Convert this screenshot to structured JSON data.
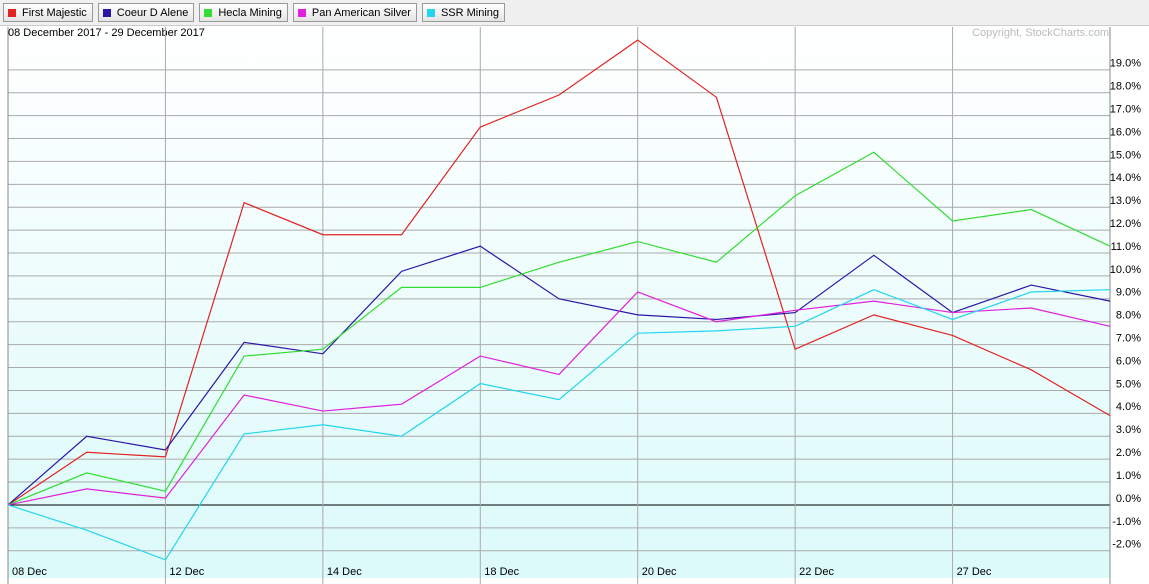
{
  "chart_data": {
    "type": "line",
    "subtitle": "08 December 2017 - 29 December 2017",
    "credit": "Copyright, StockCharts.com",
    "categories": [
      "08 Dec",
      null,
      "12 Dec",
      null,
      "14 Dec",
      null,
      "18 Dec",
      null,
      "20 Dec",
      null,
      "22 Dec",
      null,
      "27 Dec",
      null,
      null
    ],
    "series": [
      {
        "name": "First Majestic",
        "color": "#e32222",
        "values": [
          0,
          2.3,
          2.1,
          13.2,
          11.8,
          11.8,
          16.5,
          17.9,
          20.3,
          17.8,
          6.8,
          8.3,
          7.4,
          5.9,
          3.9
        ]
      },
      {
        "name": "Coeur D Alene",
        "color": "#2a14a8",
        "values": [
          0,
          3.0,
          2.4,
          7.1,
          6.6,
          10.2,
          11.3,
          9.0,
          8.3,
          8.1,
          8.4,
          10.9,
          8.4,
          9.6,
          8.9
        ]
      },
      {
        "name": "Hecla Mining",
        "color": "#33dd33",
        "values": [
          0,
          1.4,
          0.6,
          6.5,
          6.8,
          9.5,
          9.5,
          10.6,
          11.5,
          10.6,
          13.5,
          15.4,
          12.4,
          12.9,
          11.3
        ]
      },
      {
        "name": "Pan American Silver",
        "color": "#e020dc",
        "values": [
          0,
          0.7,
          0.3,
          4.8,
          4.1,
          4.4,
          6.5,
          5.7,
          9.3,
          8.0,
          8.5,
          8.9,
          8.4,
          8.6,
          7.8
        ]
      },
      {
        "name": "SSR Mining",
        "color": "#22d6ee",
        "values": [
          0,
          -1.1,
          -2.4,
          3.1,
          3.5,
          3.0,
          5.3,
          4.6,
          7.5,
          7.6,
          7.8,
          9.4,
          8.1,
          9.3,
          9.4
        ]
      }
    ],
    "ylim": [
      -3.19,
      20.87
    ],
    "yticks": [
      {
        "value": -2,
        "label": "-2.0%"
      },
      {
        "value": -1,
        "label": "-1.0%"
      },
      {
        "value": 0,
        "label": "0.0%"
      },
      {
        "value": 1,
        "label": "1.0%"
      },
      {
        "value": 2,
        "label": "2.0%"
      },
      {
        "value": 3,
        "label": "3.0%"
      },
      {
        "value": 4,
        "label": "4.0%"
      },
      {
        "value": 5,
        "label": "5.0%"
      },
      {
        "value": 6,
        "label": "6.0%"
      },
      {
        "value": 7,
        "label": "7.0%"
      },
      {
        "value": 8,
        "label": "8.0%"
      },
      {
        "value": 9,
        "label": "9.0%"
      },
      {
        "value": 10,
        "label": "10.0%"
      },
      {
        "value": 11,
        "label": "11.0%"
      },
      {
        "value": 12,
        "label": "12.0%"
      },
      {
        "value": 13,
        "label": "13.0%"
      },
      {
        "value": 14,
        "label": "14.0%"
      },
      {
        "value": 15,
        "label": "15.0%"
      },
      {
        "value": 16,
        "label": "16.0%"
      },
      {
        "value": 17,
        "label": "17.0%"
      },
      {
        "value": 18,
        "label": "18.0%"
      },
      {
        "value": 19,
        "label": "19.0%"
      }
    ],
    "grid": true
  }
}
